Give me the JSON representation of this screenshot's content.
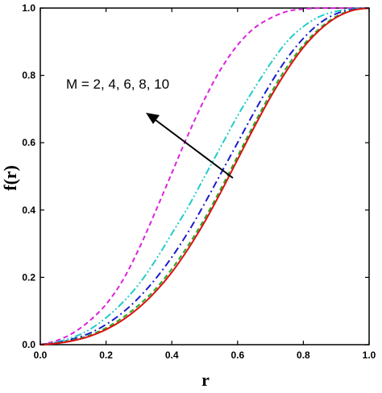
{
  "chart_data": {
    "type": "line",
    "xlabel": "r",
    "ylabel": "f(r)",
    "xlim": [
      0.0,
      1.0
    ],
    "ylim": [
      0.0,
      1.0
    ],
    "x_ticks": [
      "0.0",
      "0.2",
      "0.4",
      "0.6",
      "0.8",
      "1.0"
    ],
    "y_ticks": [
      "0.0",
      "0.2",
      "0.4",
      "0.6",
      "0.8",
      "1.0"
    ],
    "grid": false,
    "legend": "none",
    "annotation": "M = 2, 4, 6, 8, 10",
    "x": [
      0.0,
      0.05,
      0.1,
      0.15,
      0.2,
      0.25,
      0.3,
      0.35,
      0.4,
      0.45,
      0.5,
      0.55,
      0.6,
      0.65,
      0.7,
      0.75,
      0.8,
      0.85,
      0.9,
      0.95,
      1.0
    ],
    "series": [
      {
        "color": "#dd22dd",
        "style": "dashed",
        "values": [
          0.0,
          0.012,
          0.035,
          0.071,
          0.12,
          0.19,
          0.285,
          0.395,
          0.51,
          0.625,
          0.73,
          0.82,
          0.89,
          0.94,
          0.97,
          0.99,
          0.997,
          1.0,
          1.0,
          1.0,
          1.0
        ]
      },
      {
        "color": "#22cccc",
        "style": "dash-dot-dot",
        "values": [
          0.0,
          0.008,
          0.022,
          0.045,
          0.08,
          0.125,
          0.18,
          0.25,
          0.33,
          0.41,
          0.5,
          0.59,
          0.68,
          0.76,
          0.835,
          0.9,
          0.945,
          0.975,
          0.99,
          0.998,
          1.0
        ]
      },
      {
        "color": "#1a1acc",
        "style": "dash-dot",
        "values": [
          0.0,
          0.006,
          0.017,
          0.034,
          0.06,
          0.095,
          0.14,
          0.195,
          0.26,
          0.335,
          0.42,
          0.51,
          0.6,
          0.69,
          0.775,
          0.85,
          0.91,
          0.955,
          0.983,
          0.996,
          1.0
        ]
      },
      {
        "color": "#22aa22",
        "style": "dashed",
        "values": [
          0.0,
          0.005,
          0.014,
          0.028,
          0.05,
          0.08,
          0.118,
          0.165,
          0.225,
          0.295,
          0.375,
          0.465,
          0.56,
          0.655,
          0.745,
          0.825,
          0.89,
          0.94,
          0.975,
          0.994,
          1.0
        ]
      },
      {
        "color": "#dd1111",
        "style": "solid",
        "values": [
          0.0,
          0.004,
          0.012,
          0.025,
          0.045,
          0.073,
          0.11,
          0.157,
          0.215,
          0.285,
          0.365,
          0.455,
          0.55,
          0.645,
          0.735,
          0.815,
          0.883,
          0.935,
          0.972,
          0.993,
          1.0
        ]
      }
    ]
  }
}
